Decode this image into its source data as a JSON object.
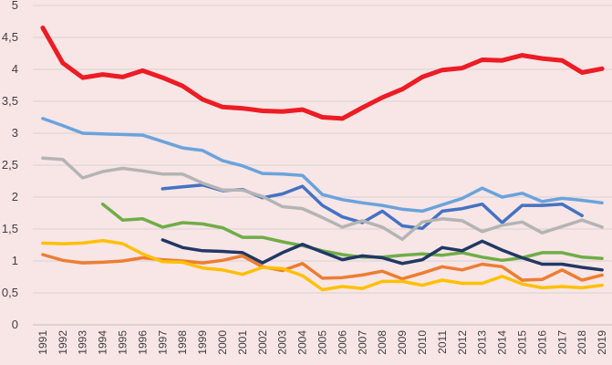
{
  "chart_data": {
    "type": "line",
    "title": "",
    "xlabel": "",
    "ylabel": "",
    "ylim": [
      0,
      5
    ],
    "yticks": [
      "0",
      "0,5",
      "1",
      "1,5",
      "2",
      "2,5",
      "3",
      "3,5",
      "4",
      "4,5",
      "5"
    ],
    "grid": true,
    "legend": "none",
    "x": [
      "1991",
      "1992",
      "1993",
      "1994",
      "1995",
      "1996",
      "1997",
      "1998",
      "1999",
      "2000",
      "2001",
      "2002",
      "2003",
      "2004",
      "2005",
      "2006",
      "2007",
      "2008",
      "2009",
      "2010",
      "2011",
      "2012",
      "2013",
      "2014",
      "2015",
      "2016",
      "2017",
      "2018",
      "2019"
    ],
    "series": [
      {
        "color": "#ed1c24",
        "values": [
          4.65,
          4.1,
          3.87,
          3.92,
          3.88,
          3.98,
          3.87,
          3.74,
          3.53,
          3.41,
          3.39,
          3.35,
          3.34,
          3.37,
          3.25,
          3.23,
          3.4,
          3.56,
          3.69,
          3.88,
          3.99,
          4.02,
          4.15,
          4.14,
          4.22,
          4.17,
          4.14,
          3.95,
          4.01
        ]
      },
      {
        "color": "#6aa3dc",
        "values": [
          3.23,
          3.12,
          3.0,
          2.99,
          2.98,
          2.97,
          2.87,
          2.77,
          2.73,
          2.57,
          2.49,
          2.37,
          2.36,
          2.34,
          2.04,
          1.96,
          1.91,
          1.87,
          1.81,
          1.78,
          1.88,
          1.98,
          2.14,
          2.0,
          2.06,
          1.93,
          1.98,
          1.95,
          1.91
        ]
      },
      {
        "color": "#4472c4",
        "values": [
          null,
          null,
          null,
          null,
          null,
          null,
          2.13,
          2.16,
          2.19,
          2.1,
          2.12,
          1.99,
          2.05,
          2.17,
          1.87,
          1.69,
          1.6,
          1.78,
          1.55,
          1.51,
          1.78,
          1.82,
          1.89,
          1.6,
          1.87,
          1.87,
          1.89,
          1.71,
          null
        ]
      },
      {
        "color": "#b4b4b4",
        "values": [
          2.61,
          2.59,
          2.3,
          2.4,
          2.45,
          2.41,
          2.36,
          2.36,
          2.22,
          2.11,
          2.11,
          2.01,
          1.85,
          1.82,
          1.68,
          1.53,
          1.63,
          1.53,
          1.34,
          1.61,
          1.66,
          1.63,
          1.46,
          1.56,
          1.61,
          1.44,
          1.54,
          1.64,
          1.53
        ]
      },
      {
        "color": "#70ad47",
        "values": [
          null,
          null,
          null,
          1.89,
          1.64,
          1.66,
          1.53,
          1.6,
          1.58,
          1.52,
          1.37,
          1.37,
          1.3,
          1.24,
          1.16,
          1.1,
          1.06,
          1.06,
          1.09,
          1.11,
          1.09,
          1.13,
          1.06,
          1.01,
          1.05,
          1.13,
          1.13,
          1.06,
          1.04
        ]
      },
      {
        "color": "#203864",
        "values": [
          null,
          null,
          null,
          null,
          null,
          null,
          1.33,
          1.21,
          1.16,
          1.15,
          1.13,
          0.97,
          1.13,
          1.26,
          1.14,
          1.02,
          1.08,
          1.05,
          0.96,
          1.02,
          1.21,
          1.16,
          1.31,
          1.17,
          1.05,
          0.95,
          0.95,
          0.9,
          0.86
        ]
      },
      {
        "color": "#ed7d31",
        "values": [
          1.1,
          1.01,
          0.97,
          0.98,
          1.0,
          1.05,
          1.02,
          1.0,
          0.97,
          1.01,
          1.08,
          0.91,
          0.85,
          0.96,
          0.73,
          0.74,
          0.78,
          0.84,
          0.72,
          0.81,
          0.91,
          0.86,
          0.95,
          0.91,
          0.7,
          0.71,
          0.86,
          0.7,
          0.78
        ]
      },
      {
        "color": "#ffc000",
        "values": [
          1.28,
          1.27,
          1.28,
          1.32,
          1.27,
          1.11,
          0.99,
          0.98,
          0.89,
          0.86,
          0.79,
          0.9,
          0.88,
          0.77,
          0.55,
          0.6,
          0.57,
          0.68,
          0.68,
          0.62,
          0.7,
          0.65,
          0.65,
          0.76,
          0.64,
          0.58,
          0.6,
          0.58,
          0.62
        ]
      }
    ]
  }
}
